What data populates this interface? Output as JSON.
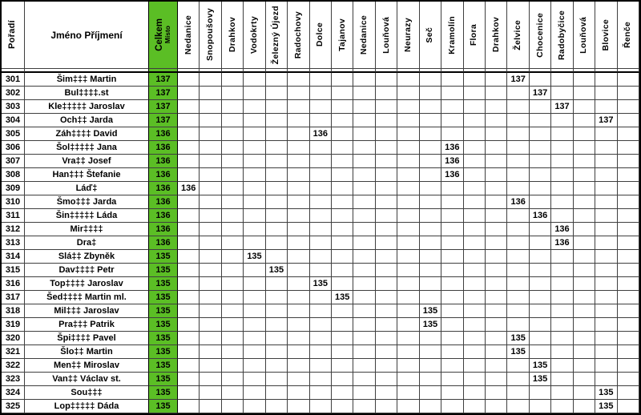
{
  "colors": {
    "accent_green": "#5BBE25",
    "grid_line": "#3f3f3f",
    "outer_border": "#000000"
  },
  "table": {
    "header": {
      "rank": "Pořadí",
      "name": "Jméno Příjmení",
      "total_main": "Celkem",
      "total_sub": "Místo"
    },
    "location_columns": [
      "Nedanice",
      "Snopoušovy",
      "Drahkov",
      "Vodokrty",
      "Železný Újezd",
      "Radochovy",
      "Dolce",
      "Tajanov",
      "Nedanice",
      "Louňová",
      "Neurazy",
      "Seč",
      "Kramolín",
      "Flora",
      "Drahkov",
      "Želvice",
      "Chocenice",
      "Radobyčice",
      "Louňová",
      "Blovice",
      "Řenče"
    ],
    "rows": [
      {
        "rank": "301",
        "name": "Šim‡‡‡ Martin",
        "total": "137",
        "score_column_index": 15,
        "score_column": "Želvice",
        "score": "137"
      },
      {
        "rank": "302",
        "name": "Bul‡‡‡‡.st",
        "total": "137",
        "score_column_index": 16,
        "score_column": "Chocenice",
        "score": "137"
      },
      {
        "rank": "303",
        "name": "Kle‡‡‡‡‡ Jaroslav",
        "total": "137",
        "score_column_index": 17,
        "score_column": "Radobyčice",
        "score": "137"
      },
      {
        "rank": "304",
        "name": "Och‡‡ Jarda",
        "total": "137",
        "score_column_index": 19,
        "score_column": "Blovice",
        "score": "137"
      },
      {
        "rank": "305",
        "name": "Záh‡‡‡‡ David",
        "total": "136",
        "score_column_index": 6,
        "score_column": "Dolce",
        "score": "136"
      },
      {
        "rank": "306",
        "name": "Šol‡‡‡‡‡ Jana",
        "total": "136",
        "score_column_index": 12,
        "score_column": "Kramolín",
        "score": "136"
      },
      {
        "rank": "307",
        "name": "Vra‡‡ Josef",
        "total": "136",
        "score_column_index": 12,
        "score_column": "Kramolín",
        "score": "136"
      },
      {
        "rank": "308",
        "name": "Han‡‡‡ Štefanie",
        "total": "136",
        "score_column_index": 12,
        "score_column": "Kramolín",
        "score": "136"
      },
      {
        "rank": "309",
        "name": "Láď‡",
        "total": "136",
        "score_column_index": 0,
        "score_column": "Nedanice",
        "score": "136"
      },
      {
        "rank": "310",
        "name": "Šmo‡‡‡ Jarda",
        "total": "136",
        "score_column_index": 15,
        "score_column": "Želvice",
        "score": "136"
      },
      {
        "rank": "311",
        "name": "Šin‡‡‡‡‡ Láda",
        "total": "136",
        "score_column_index": 16,
        "score_column": "Chocenice",
        "score": "136"
      },
      {
        "rank": "312",
        "name": "Mir‡‡‡‡",
        "total": "136",
        "score_column_index": 17,
        "score_column": "Radobyčice",
        "score": "136"
      },
      {
        "rank": "313",
        "name": "Dra‡",
        "total": "136",
        "score_column_index": 17,
        "score_column": "Radobyčice",
        "score": "136"
      },
      {
        "rank": "314",
        "name": "Slá‡‡ Zbyněk",
        "total": "135",
        "score_column_index": 3,
        "score_column": "Vodokrty",
        "score": "135"
      },
      {
        "rank": "315",
        "name": "Dav‡‡‡‡ Petr",
        "total": "135",
        "score_column_index": 4,
        "score_column": "Železný Újezd",
        "score": "135"
      },
      {
        "rank": "316",
        "name": "Top‡‡‡‡ Jaroslav",
        "total": "135",
        "score_column_index": 6,
        "score_column": "Dolce",
        "score": "135"
      },
      {
        "rank": "317",
        "name": "Šed‡‡‡‡ Martin ml.",
        "total": "135",
        "score_column_index": 7,
        "score_column": "Tajanov",
        "score": "135"
      },
      {
        "rank": "318",
        "name": "Mil‡‡‡ Jaroslav",
        "total": "135",
        "score_column_index": 11,
        "score_column": "Seč",
        "score": "135"
      },
      {
        "rank": "319",
        "name": "Pra‡‡‡ Patrik",
        "total": "135",
        "score_column_index": 11,
        "score_column": "Seč",
        "score": "135"
      },
      {
        "rank": "320",
        "name": "Špi‡‡‡‡ Pavel",
        "total": "135",
        "score_column_index": 15,
        "score_column": "Želvice",
        "score": "135"
      },
      {
        "rank": "321",
        "name": "Šlo‡‡ Martin",
        "total": "135",
        "score_column_index": 15,
        "score_column": "Želvice",
        "score": "135"
      },
      {
        "rank": "322",
        "name": "Men‡‡ Miroslav",
        "total": "135",
        "score_column_index": 16,
        "score_column": "Chocenice",
        "score": "135"
      },
      {
        "rank": "323",
        "name": "Van‡‡ Václav st.",
        "total": "135",
        "score_column_index": 16,
        "score_column": "Chocenice",
        "score": "135"
      },
      {
        "rank": "324",
        "name": "Sou‡‡‡",
        "total": "135",
        "score_column_index": 19,
        "score_column": "Blovice",
        "score": "135"
      },
      {
        "rank": "325",
        "name": "Lop‡‡‡‡‡ Dáda",
        "total": "135",
        "score_column_index": 19,
        "score_column": "Blovice",
        "score": "135"
      }
    ]
  }
}
